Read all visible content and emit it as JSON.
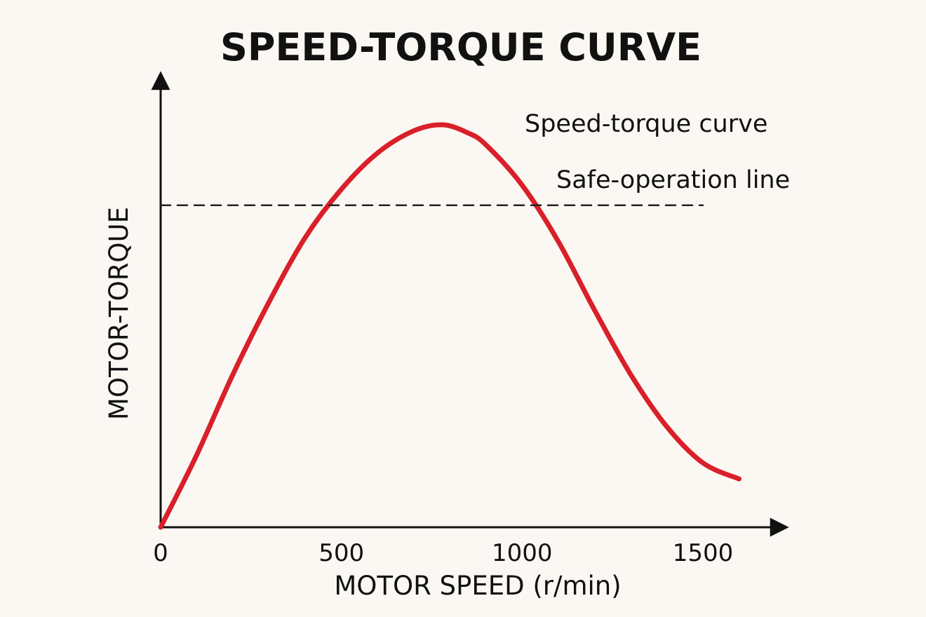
{
  "chart_data": {
    "type": "line",
    "title": "SPEED-TORQUE CURVE",
    "xlabel": "MOTOR SPEED (r/min)",
    "ylabel": "MOTOR-TORQUE",
    "xlim": [
      0,
      1700
    ],
    "ylim": [
      0,
      1
    ],
    "x_ticks": [
      0,
      500,
      1000,
      1500
    ],
    "x_tick_labels": [
      "0",
      "500",
      "1000",
      "1500"
    ],
    "grid": false,
    "series": [
      {
        "name": "Speed-torque curve",
        "style": "solid",
        "color": "#d9202a",
        "x": [
          0,
          100,
          200,
          300,
          400,
          500,
          600,
          700,
          780,
          850,
          900,
          1000,
          1100,
          1200,
          1300,
          1400,
          1500,
          1600
        ],
        "y": [
          0.0,
          0.18,
          0.38,
          0.56,
          0.72,
          0.84,
          0.93,
          0.985,
          1.0,
          0.98,
          0.95,
          0.85,
          0.71,
          0.54,
          0.38,
          0.25,
          0.16,
          0.12
        ]
      },
      {
        "name": "Safe-operation line",
        "style": "dashed",
        "color": "#222222",
        "x": [
          0,
          1500
        ],
        "y": [
          0.8,
          0.8
        ]
      }
    ],
    "legend": {
      "placement": "top-right",
      "entries": [
        "Speed-torque curve",
        "Safe-operation line"
      ]
    }
  }
}
